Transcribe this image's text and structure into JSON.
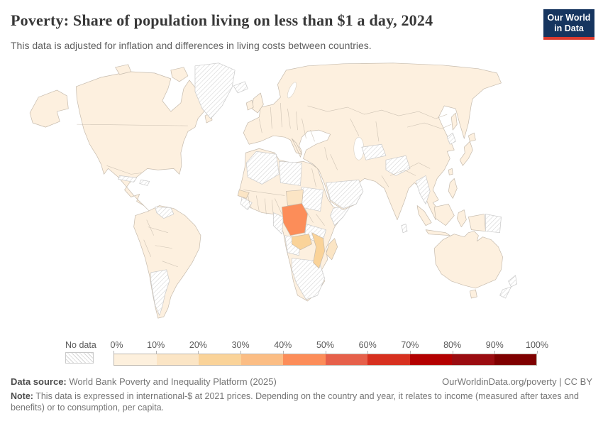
{
  "header": {
    "title": "Poverty: Share of population living on less than $1 a day, 2024",
    "subtitle": "This data is adjusted for inflation and differences in living costs between countries.",
    "logo": {
      "line1": "Our World",
      "line2": "in Data",
      "bg_color": "#16355f",
      "accent_color": "#dc3b2f"
    }
  },
  "legend": {
    "no_data_label": "No data",
    "tick_labels": [
      "0%",
      "10%",
      "20%",
      "30%",
      "40%",
      "50%",
      "60%",
      "70%",
      "80%",
      "90%",
      "100%"
    ],
    "bucket_labels": [
      "0-10%",
      "10-20%",
      "20-30%",
      "30-40%",
      "40-50%",
      "50-60%",
      "60-70%",
      "70-80%",
      "80-90%",
      "90-100%"
    ],
    "colors": [
      "#fdf0dd",
      "#fbe5c5",
      "#fad399",
      "#fbbd84",
      "#fc8d59",
      "#e6604a",
      "#d7301f",
      "#b30000",
      "#9a0c10",
      "#7f0000"
    ]
  },
  "map": {
    "default_range": "0-10%",
    "default_color": "#fdf0df",
    "border_color": "#c6bbad",
    "no_data_pattern": "diagonal-hatch",
    "regions": [
      {
        "id": "greenland",
        "label": "Greenland",
        "range": "no data",
        "bucket": -1
      },
      {
        "id": "iceland",
        "label": "Iceland",
        "range": "no data",
        "bucket": -1
      },
      {
        "id": "cuba",
        "label": "Cuba",
        "range": "no data",
        "bucket": -1
      },
      {
        "id": "hispaniola",
        "label": "Haiti / Dominican Republic",
        "range": "no data",
        "bucket": -1
      },
      {
        "id": "venezuela",
        "label": "Venezuela",
        "range": "no data",
        "bucket": -1
      },
      {
        "id": "argentina",
        "label": "Argentina",
        "range": "no data",
        "bucket": -1
      },
      {
        "id": "algeria",
        "label": "Algeria",
        "range": "no data",
        "bucket": -1
      },
      {
        "id": "libya",
        "label": "Libya",
        "range": "no data",
        "bucket": -1
      },
      {
        "id": "sudan",
        "label": "Sudan",
        "range": "no data",
        "bucket": -1
      },
      {
        "id": "somalia",
        "label": "Somalia",
        "range": "no data",
        "bucket": -1
      },
      {
        "id": "tanzania",
        "label": "Tanzania",
        "range": "no data",
        "bucket": -1
      },
      {
        "id": "angola",
        "label": "Angola",
        "range": "no data",
        "bucket": -1
      },
      {
        "id": "southern-africa",
        "label": "Namibia / Botswana / South Africa",
        "range": "no data",
        "bucket": -1
      },
      {
        "id": "guinea",
        "label": "Guinea / Sierra Leone",
        "range": "no data",
        "bucket": -1
      },
      {
        "id": "cameroon-gabon",
        "label": "Cameroon / Gabon",
        "range": "no data",
        "bucket": -1
      },
      {
        "id": "arabian-peninsula",
        "label": "Saudi Arabia / Yemen / Oman",
        "range": "no data",
        "bucket": -1
      },
      {
        "id": "turkmenistan",
        "label": "Turkmenistan",
        "range": "no data",
        "bucket": -1
      },
      {
        "id": "afghanistan",
        "label": "Afghanistan",
        "range": "no data",
        "bucket": -1
      },
      {
        "id": "myanmar",
        "label": "Myanmar",
        "range": "no data",
        "bucket": -1
      },
      {
        "id": "north-korea",
        "label": "North Korea",
        "range": "no data",
        "bucket": -1
      },
      {
        "id": "sri-lanka",
        "label": "Sri Lanka",
        "range": "no data",
        "bucket": -1
      },
      {
        "id": "papua-new-guinea",
        "label": "Papua New Guinea",
        "range": "no data",
        "bucket": -1
      },
      {
        "id": "new-zealand",
        "label": "New Zealand",
        "range": "no data",
        "bucket": -1
      },
      {
        "id": "drc",
        "label": "Democratic Republic of Congo",
        "range": "40-50%",
        "bucket": 4
      },
      {
        "id": "zambia",
        "label": "Zambia",
        "range": "20-30%",
        "bucket": 2
      },
      {
        "id": "mozambique",
        "label": "Mozambique",
        "range": "20-30%",
        "bucket": 2
      },
      {
        "id": "central-african-republic",
        "label": "Central African Republic",
        "range": "10-20%",
        "bucket": 1
      },
      {
        "id": "madagascar",
        "label": "Madagascar",
        "range": "10-20%",
        "bucket": 1
      },
      {
        "id": "senegal",
        "label": "Senegal",
        "range": "10-20%",
        "bucket": 1
      }
    ]
  },
  "footer": {
    "datasource_label": "Data source:",
    "datasource": "World Bank Poverty and Inequality Platform (2025)",
    "link": "OurWorldinData.org/poverty | CC BY",
    "note_label": "Note:",
    "note": "This data is expressed in international-$ at 2021 prices. Depending on the country and year, it relates to income (measured after taxes and benefits) or to consumption, per capita."
  },
  "chart_data": {
    "type": "heatmap",
    "subtype": "choropleth_world_map",
    "title": "Poverty: Share of population living on less than $1 a day, 2024",
    "unit": "% of population",
    "year": 2024,
    "legend_position": "bottom",
    "scale_ticks": [
      "0%",
      "10%",
      "20%",
      "30%",
      "40%",
      "50%",
      "60%",
      "70%",
      "80%",
      "90%",
      "100%"
    ],
    "scale_colors": [
      "#fdf0dd",
      "#fbe5c5",
      "#fad399",
      "#fbbd84",
      "#fc8d59",
      "#e6604a",
      "#d7301f",
      "#b30000",
      "#9a0c10",
      "#7f0000"
    ],
    "values_by_region": [
      {
        "country": "Democratic Republic of Congo",
        "range": "40-50%"
      },
      {
        "country": "Zambia",
        "range": "20-30%"
      },
      {
        "country": "Mozambique",
        "range": "20-30%"
      },
      {
        "country": "Central African Republic",
        "range": "10-20%"
      },
      {
        "country": "Madagascar",
        "range": "10-20%"
      },
      {
        "country": "Senegal",
        "range": "10-20%"
      },
      {
        "country": "Most other countries (Americas, Europe, Asia, Oceania, rest of Africa)",
        "range": "0-10%"
      }
    ],
    "no_data_countries": [
      "Greenland",
      "Iceland",
      "Cuba",
      "Haiti/Dominican Republic",
      "Venezuela",
      "Argentina",
      "Algeria",
      "Libya",
      "Sudan",
      "Somalia",
      "Tanzania",
      "Angola",
      "Namibia",
      "Botswana",
      "South Africa",
      "Guinea",
      "Cameroon/Gabon",
      "Saudi Arabia",
      "Yemen",
      "Oman",
      "Turkmenistan",
      "Afghanistan",
      "Myanmar",
      "North Korea",
      "Sri Lanka",
      "Papua New Guinea",
      "New Zealand"
    ]
  }
}
